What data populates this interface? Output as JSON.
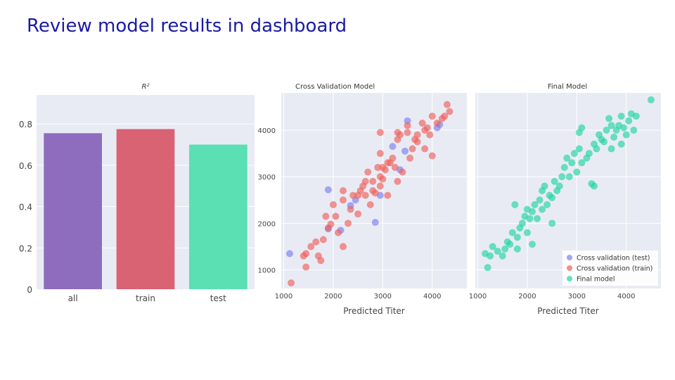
{
  "slide": {
    "title": "Review model results in dashboard"
  },
  "colors": {
    "plot_bg": "#e8ebf4",
    "grid": "#ffffff",
    "test": "#7b7ff0",
    "train": "#f0605a",
    "final": "#20d6a0",
    "bar_all": "#8e6cbe",
    "bar_train": "#d96273",
    "bar_test": "#5ae0b3"
  },
  "chart_data": [
    {
      "type": "bar",
      "title": "R²",
      "categories": [
        "all",
        "train",
        "test"
      ],
      "values": [
        0.755,
        0.775,
        0.7
      ],
      "colors": [
        "#8e6cbe",
        "#d96273",
        "#5ae0b3"
      ],
      "ylim": [
        0,
        0.94
      ],
      "yticks": [
        0,
        0.2,
        0.4,
        0.6,
        0.8
      ],
      "ytick_labels": [
        "0",
        "0.2",
        "0.4",
        "0.6",
        "0.8"
      ],
      "xlabel": "",
      "ylabel": "",
      "grid": true
    },
    {
      "type": "scatter",
      "title": "Cross Validation Model",
      "xlabel": "Predicted Titer",
      "ylabel": "",
      "xlim": [
        950,
        4700
      ],
      "ylim": [
        600,
        4800
      ],
      "xticks": [
        1000,
        2000,
        3000,
        4000
      ],
      "yticks": [
        1000,
        2000,
        3000,
        4000
      ],
      "grid": true,
      "series": [
        {
          "name": "Cross validation (test)",
          "color": "#7b7ff0",
          "points": [
            [
              1120,
              1350
            ],
            [
              1900,
              2720
            ],
            [
              1900,
              1880
            ],
            [
              2150,
              1850
            ],
            [
              2350,
              2380
            ],
            [
              2450,
              2500
            ],
            [
              2850,
              2020
            ],
            [
              2950,
              2600
            ],
            [
              3200,
              3650
            ],
            [
              3350,
              3150
            ],
            [
              3450,
              3550
            ],
            [
              3500,
              4200
            ],
            [
              4100,
              4050
            ],
            [
              4150,
              4120
            ]
          ]
        },
        {
          "name": "Cross validation (train)",
          "color": "#f0605a",
          "points": [
            [
              1150,
              720
            ],
            [
              1400,
              1300
            ],
            [
              1450,
              1350
            ],
            [
              1450,
              1060
            ],
            [
              1550,
              1500
            ],
            [
              1650,
              1600
            ],
            [
              1700,
              1300
            ],
            [
              1750,
              1200
            ],
            [
              1800,
              1650
            ],
            [
              1850,
              2150
            ],
            [
              1900,
              1900
            ],
            [
              1950,
              1980
            ],
            [
              2000,
              2400
            ],
            [
              2050,
              2150
            ],
            [
              2100,
              1800
            ],
            [
              2200,
              2700
            ],
            [
              2200,
              2500
            ],
            [
              2200,
              1500
            ],
            [
              2300,
              2000
            ],
            [
              2350,
              2300
            ],
            [
              2400,
              2600
            ],
            [
              2500,
              2200
            ],
            [
              2500,
              2600
            ],
            [
              2550,
              2700
            ],
            [
              2600,
              2800
            ],
            [
              2650,
              2600
            ],
            [
              2650,
              2900
            ],
            [
              2700,
              3100
            ],
            [
              2750,
              2400
            ],
            [
              2800,
              2900
            ],
            [
              2800,
              2700
            ],
            [
              2850,
              2650
            ],
            [
              2900,
              3200
            ],
            [
              2950,
              2800
            ],
            [
              2950,
              3000
            ],
            [
              2950,
              3500
            ],
            [
              3000,
              2950
            ],
            [
              3000,
              3200
            ],
            [
              3050,
              3150
            ],
            [
              3100,
              2600
            ],
            [
              3100,
              3300
            ],
            [
              3150,
              3300
            ],
            [
              3200,
              3400
            ],
            [
              3250,
              3200
            ],
            [
              3300,
              2900
            ],
            [
              3300,
              3800
            ],
            [
              3350,
              3900
            ],
            [
              3400,
              3100
            ],
            [
              3500,
              3950
            ],
            [
              3550,
              3400
            ],
            [
              3600,
              3600
            ],
            [
              3650,
              3800
            ],
            [
              3700,
              3900
            ],
            [
              3700,
              3750
            ],
            [
              3800,
              4150
            ],
            [
              3850,
              4000
            ],
            [
              3850,
              3600
            ],
            [
              3900,
              4050
            ],
            [
              3950,
              3900
            ],
            [
              4000,
              3450
            ],
            [
              4000,
              4300
            ],
            [
              4100,
              4150
            ],
            [
              4200,
              4250
            ],
            [
              4250,
              4300
            ],
            [
              4300,
              4550
            ],
            [
              4350,
              4400
            ],
            [
              2950,
              3950
            ],
            [
              3300,
              3950
            ],
            [
              3500,
              4100
            ]
          ]
        }
      ]
    },
    {
      "type": "scatter",
      "title": "Final Model",
      "xlabel": "Predicted Titer",
      "ylabel": "",
      "xlim": [
        950,
        4700
      ],
      "ylim": [
        600,
        4800
      ],
      "xticks": [
        1000,
        2000,
        3000,
        4000
      ],
      "yticks": [
        1000,
        2000,
        3000,
        4000
      ],
      "grid": true,
      "legend": {
        "placement": "bottom-right",
        "entries": [
          "Cross validation (test)",
          "Cross validation (train)",
          "Final model"
        ],
        "colors": [
          "#7b7ff0",
          "#f0605a",
          "#20d6a0"
        ]
      },
      "series": [
        {
          "name": "Final model",
          "color": "#20d6a0",
          "points": [
            [
              1150,
              1350
            ],
            [
              1200,
              1050
            ],
            [
              1250,
              1300
            ],
            [
              1300,
              1500
            ],
            [
              1400,
              1400
            ],
            [
              1500,
              1300
            ],
            [
              1550,
              1450
            ],
            [
              1600,
              1600
            ],
            [
              1650,
              1550
            ],
            [
              1700,
              1800
            ],
            [
              1750,
              2400
            ],
            [
              1800,
              1700
            ],
            [
              1850,
              1900
            ],
            [
              1900,
              2000
            ],
            [
              1950,
              2150
            ],
            [
              2000,
              2300
            ],
            [
              2000,
              1800
            ],
            [
              2050,
              2100
            ],
            [
              2100,
              2250
            ],
            [
              2150,
              2400
            ],
            [
              2200,
              2100
            ],
            [
              2250,
              2500
            ],
            [
              2300,
              2700
            ],
            [
              2300,
              2300
            ],
            [
              2350,
              2800
            ],
            [
              2400,
              2400
            ],
            [
              2450,
              2600
            ],
            [
              2500,
              2550
            ],
            [
              2550,
              2900
            ],
            [
              2600,
              2700
            ],
            [
              2650,
              2800
            ],
            [
              2700,
              3000
            ],
            [
              2750,
              3200
            ],
            [
              2800,
              3400
            ],
            [
              2850,
              3000
            ],
            [
              2900,
              3300
            ],
            [
              2950,
              3500
            ],
            [
              3000,
              3100
            ],
            [
              3050,
              3600
            ],
            [
              3050,
              3950
            ],
            [
              3100,
              4050
            ],
            [
              3100,
              3300
            ],
            [
              3200,
              3400
            ],
            [
              3250,
              3500
            ],
            [
              3300,
              2850
            ],
            [
              3350,
              3700
            ],
            [
              3400,
              3600
            ],
            [
              3450,
              3900
            ],
            [
              3500,
              3800
            ],
            [
              3550,
              3750
            ],
            [
              3600,
              4000
            ],
            [
              3650,
              4250
            ],
            [
              3700,
              4100
            ],
            [
              3750,
              3850
            ],
            [
              3800,
              4000
            ],
            [
              3850,
              4100
            ],
            [
              3900,
              4300
            ],
            [
              3950,
              4050
            ],
            [
              4000,
              3900
            ],
            [
              4050,
              4200
            ],
            [
              4100,
              4350
            ],
            [
              4150,
              4000
            ],
            [
              4200,
              4300
            ],
            [
              4500,
              4650
            ],
            [
              1800,
              1450
            ],
            [
              2100,
              1550
            ],
            [
              2500,
              2000
            ],
            [
              3350,
              2800
            ],
            [
              3700,
              3600
            ],
            [
              3900,
              3700
            ]
          ]
        }
      ]
    }
  ]
}
